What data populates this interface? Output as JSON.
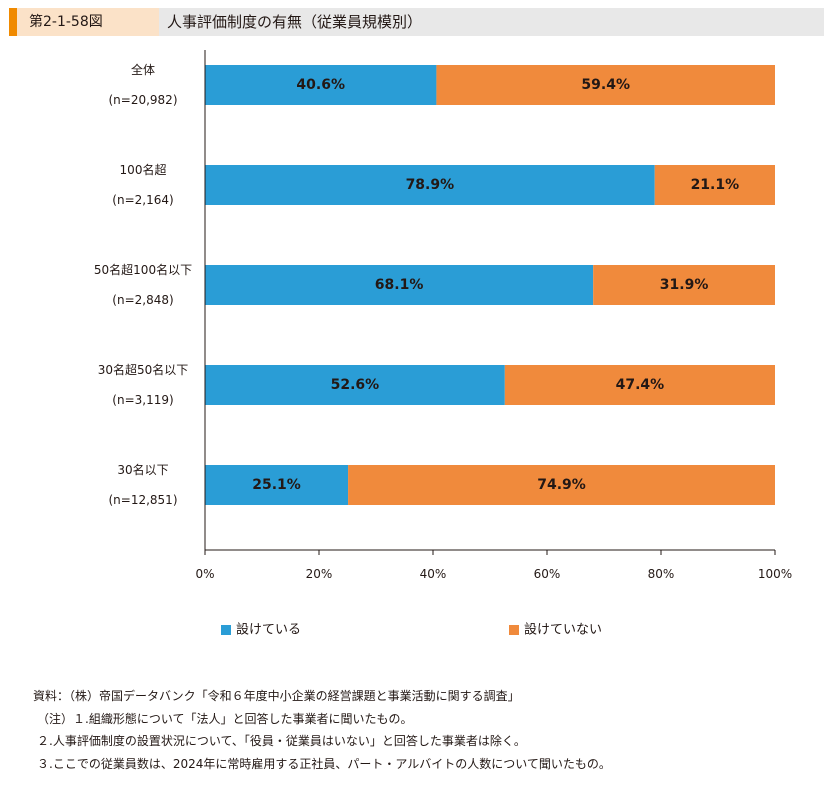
{
  "header": {
    "figure_number": "第2-1-58図",
    "title": "人事評価制度の有無（従業員規模別）"
  },
  "colors": {
    "series1": "#2a9dd6",
    "series2": "#f08a3c",
    "header_accent": "#f08a00"
  },
  "chart_data": {
    "type": "bar",
    "orientation": "horizontal",
    "stacked": true,
    "categories": [
      [
        "全体",
        "(n=20,982)"
      ],
      [
        "100名超",
        "(n=2,164)"
      ],
      [
        "50名超100名以下",
        "(n=2,848)"
      ],
      [
        "30名超50名以下",
        "(n=3,119)"
      ],
      [
        "30名以下",
        "(n=12,851)"
      ]
    ],
    "series": [
      {
        "name": "設けている",
        "values": [
          40.6,
          78.9,
          68.1,
          52.6,
          25.1
        ],
        "labels": [
          "40.6%",
          "78.9%",
          "68.1%",
          "52.6%",
          "25.1%"
        ]
      },
      {
        "name": "設けていない",
        "values": [
          59.4,
          21.1,
          31.9,
          47.4,
          74.9
        ],
        "labels": [
          "59.4%",
          "21.1%",
          "31.9%",
          "47.4%",
          "74.9%"
        ]
      }
    ],
    "xlim": [
      0,
      100
    ],
    "xticks": [
      "0%",
      "20%",
      "40%",
      "60%",
      "80%",
      "100%"
    ],
    "grid": false,
    "legend_position": "bottom"
  },
  "notes": [
    "資料：（株）帝国データバンク「令和６年度中小企業の経営課題と事業活動に関する調査」",
    "（注）１.組織形態について「法人」と回答した事業者に聞いたもの。",
    "２.人事評価制度の設置状況について、「役員・従業員はいない」と回答した事業者は除く。",
    "３.ここでの従業員数は、2024年に常時雇用する正社員、パート・アルバイトの人数について聞いたもの。"
  ]
}
